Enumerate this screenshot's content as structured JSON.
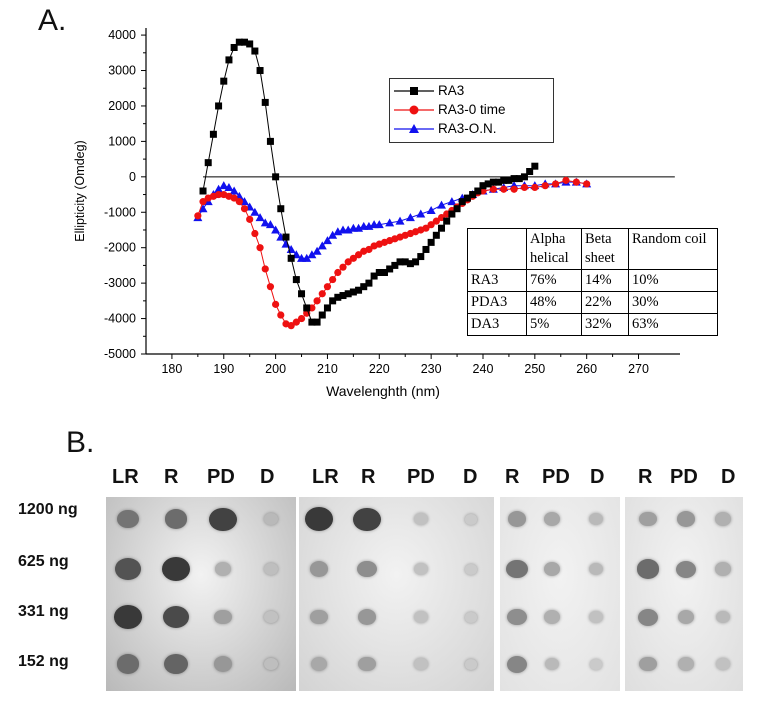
{
  "panel_a_label": "A.",
  "panel_b_label": "B.",
  "chart_data": {
    "type": "line",
    "title": "",
    "xlabel": "Wavelenghth (nm)",
    "ylabel": "Ellipticity (Omdeg)",
    "xlim": [
      175,
      278
    ],
    "ylim": [
      -5000,
      4200
    ],
    "xticks": [
      180,
      190,
      200,
      210,
      220,
      230,
      240,
      250,
      260,
      270
    ],
    "yticks": [
      -5000,
      -4000,
      -3000,
      -2000,
      -1000,
      0,
      1000,
      2000,
      3000,
      4000
    ],
    "zero_line": true,
    "legend_position": "top-right",
    "series": [
      {
        "name": "RA3",
        "color": "#000000",
        "marker": "square",
        "x": [
          186,
          187,
          188,
          189,
          190,
          191,
          192,
          193,
          194,
          195,
          196,
          197,
          198,
          199,
          200,
          201,
          202,
          203,
          204,
          205,
          206,
          207,
          208,
          209,
          210,
          211,
          212,
          213,
          214,
          215,
          216,
          217,
          218,
          219,
          220,
          221,
          222,
          223,
          224,
          225,
          226,
          227,
          228,
          229,
          230,
          231,
          232,
          233,
          234,
          235,
          236,
          237,
          238,
          239,
          240,
          241,
          242,
          243,
          244,
          245,
          246,
          247,
          248,
          249,
          250
        ],
        "y": [
          -400,
          400,
          1200,
          2000,
          2700,
          3300,
          3650,
          3800,
          3800,
          3750,
          3550,
          3000,
          2100,
          1000,
          0,
          -900,
          -1700,
          -2300,
          -2900,
          -3300,
          -3700,
          -4100,
          -4100,
          -3900,
          -3700,
          -3500,
          -3400,
          -3350,
          -3300,
          -3250,
          -3200,
          -3100,
          -3000,
          -2800,
          -2700,
          -2700,
          -2600,
          -2500,
          -2400,
          -2400,
          -2450,
          -2400,
          -2250,
          -2050,
          -1850,
          -1650,
          -1450,
          -1250,
          -1050,
          -900,
          -700,
          -600,
          -500,
          -400,
          -250,
          -200,
          -150,
          -150,
          -100,
          -100,
          -50,
          -50,
          0,
          150,
          300
        ]
      },
      {
        "name": "RA3-0 time",
        "color": "#ee1111",
        "marker": "circle",
        "x": [
          185,
          186,
          187,
          188,
          189,
          190,
          191,
          192,
          193,
          194,
          195,
          196,
          197,
          198,
          199,
          200,
          201,
          202,
          203,
          204,
          205,
          206,
          207,
          208,
          209,
          210,
          211,
          212,
          213,
          214,
          215,
          216,
          217,
          218,
          219,
          220,
          221,
          222,
          223,
          224,
          225,
          226,
          227,
          228,
          229,
          230,
          231,
          232,
          233,
          234,
          235,
          236,
          237,
          238,
          239,
          240,
          242,
          244,
          246,
          248,
          250,
          252,
          254,
          256,
          258,
          260
        ],
        "y": [
          -1100,
          -700,
          -600,
          -550,
          -500,
          -500,
          -550,
          -600,
          -700,
          -900,
          -1200,
          -1600,
          -2000,
          -2600,
          -3100,
          -3600,
          -3900,
          -4150,
          -4200,
          -4100,
          -4000,
          -3850,
          -3700,
          -3500,
          -3300,
          -3100,
          -2900,
          -2700,
          -2550,
          -2400,
          -2300,
          -2200,
          -2100,
          -2050,
          -1950,
          -1900,
          -1850,
          -1800,
          -1750,
          -1700,
          -1650,
          -1600,
          -1550,
          -1500,
          -1450,
          -1350,
          -1250,
          -1150,
          -1050,
          -950,
          -850,
          -750,
          -650,
          -550,
          -450,
          -400,
          -350,
          -350,
          -350,
          -300,
          -300,
          -250,
          -200,
          -100,
          -150,
          -200
        ]
      },
      {
        "name": "RA3-O.N.",
        "color": "#1111ee",
        "marker": "triangle",
        "x": [
          185,
          186,
          187,
          188,
          189,
          190,
          191,
          192,
          193,
          194,
          195,
          196,
          197,
          198,
          199,
          200,
          201,
          202,
          203,
          204,
          205,
          206,
          207,
          208,
          209,
          210,
          211,
          212,
          213,
          214,
          215,
          216,
          217,
          218,
          219,
          220,
          222,
          224,
          226,
          228,
          230,
          232,
          234,
          236,
          238,
          240,
          242,
          244,
          246,
          248,
          250,
          252,
          254,
          256,
          258,
          260
        ],
        "y": [
          -1150,
          -900,
          -700,
          -500,
          -350,
          -250,
          -300,
          -400,
          -550,
          -700,
          -850,
          -1000,
          -1150,
          -1300,
          -1350,
          -1500,
          -1700,
          -1900,
          -2050,
          -2200,
          -2300,
          -2300,
          -2200,
          -2100,
          -1950,
          -1800,
          -1650,
          -1550,
          -1500,
          -1500,
          -1450,
          -1450,
          -1400,
          -1400,
          -1350,
          -1350,
          -1300,
          -1250,
          -1150,
          -1050,
          -950,
          -800,
          -700,
          -600,
          -500,
          -400,
          -350,
          -300,
          -250,
          -250,
          -250,
          -200,
          -200,
          -150,
          -150,
          -200
        ]
      }
    ]
  },
  "table": {
    "header": [
      "",
      "Alpha helical",
      "Beta sheet",
      "Random coil"
    ],
    "rows": [
      [
        "RA3",
        "76%",
        "14%",
        "10%"
      ],
      [
        "PDA3",
        "48%",
        "22%",
        "30%"
      ],
      [
        "DA3",
        "5%",
        "32%",
        "63%"
      ]
    ]
  },
  "blots": {
    "row_labels": [
      "1200 ng",
      "625 ng",
      "331 ng",
      "152 ng"
    ],
    "panels": [
      {
        "cols": [
          "LR",
          "R",
          "PD",
          "D"
        ],
        "intensity": [
          [
            0.55,
            0.6,
            0.85,
            0.15
          ],
          [
            0.75,
            0.9,
            0.2,
            0.12
          ],
          [
            0.9,
            0.8,
            0.3,
            0.1
          ],
          [
            0.6,
            0.65,
            0.35,
            0.12
          ]
        ]
      },
      {
        "cols": [
          "LR",
          "R",
          "PD",
          "D"
        ],
        "intensity": [
          [
            0.9,
            0.85,
            0.1,
            0.05
          ],
          [
            0.35,
            0.4,
            0.1,
            0.05
          ],
          [
            0.3,
            0.35,
            0.1,
            0.05
          ],
          [
            0.25,
            0.3,
            0.1,
            0.05
          ]
        ]
      },
      {
        "cols": [
          "R",
          "PD",
          "D"
        ],
        "intensity": [
          [
            0.35,
            0.25,
            0.15
          ],
          [
            0.55,
            0.25,
            0.15
          ],
          [
            0.4,
            0.2,
            0.1
          ],
          [
            0.45,
            0.15,
            0.05
          ]
        ]
      },
      {
        "cols": [
          "R",
          "PD",
          "D"
        ],
        "intensity": [
          [
            0.3,
            0.35,
            0.2
          ],
          [
            0.6,
            0.45,
            0.2
          ],
          [
            0.45,
            0.25,
            0.15
          ],
          [
            0.3,
            0.2,
            0.1
          ]
        ]
      }
    ]
  }
}
